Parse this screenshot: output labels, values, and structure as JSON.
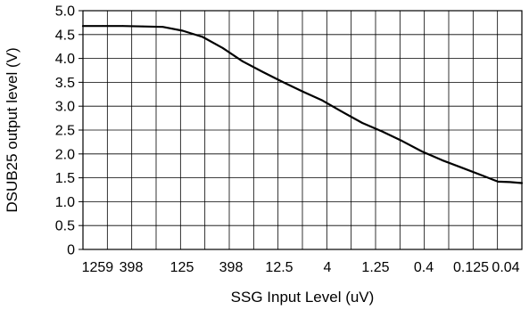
{
  "chart_data": {
    "type": "line",
    "title": "",
    "xlabel": "SSG Input Level (uV)",
    "ylabel": "DSUB25 output level (V)",
    "x_tick_labels": [
      "1259",
      "398",
      "125",
      "398",
      "12.5",
      "4",
      "1.25",
      "0.4",
      "0.125",
      "0.04"
    ],
    "y_tick_labels": [
      "0",
      "0.5",
      "1.0",
      "1.5",
      "2.0",
      "2.5",
      "3.0",
      "3.5",
      "4.0",
      "4.5",
      "5.0"
    ],
    "ylim": [
      0,
      5.0
    ],
    "grid": true,
    "x_scale": "category, decreasing input level left to right",
    "series": [
      {
        "color": "#000000",
        "points": [
          {
            "x_index": 0.0,
            "y": 4.68
          },
          {
            "x_index": 0.5,
            "y": 4.68
          },
          {
            "x_index": 1.0,
            "y": 4.68
          },
          {
            "x_index": 1.5,
            "y": 4.67
          },
          {
            "x_index": 2.0,
            "y": 4.66
          },
          {
            "x_index": 2.5,
            "y": 4.58
          },
          {
            "x_index": 3.0,
            "y": 4.45
          },
          {
            "x_index": 3.5,
            "y": 4.22
          },
          {
            "x_index": 4.0,
            "y": 3.94
          },
          {
            "x_index": 4.5,
            "y": 3.72
          },
          {
            "x_index": 5.0,
            "y": 3.51
          },
          {
            "x_index": 5.5,
            "y": 3.31
          },
          {
            "x_index": 6.0,
            "y": 3.12
          },
          {
            "x_index": 6.5,
            "y": 2.88
          },
          {
            "x_index": 7.0,
            "y": 2.65
          },
          {
            "x_index": 7.5,
            "y": 2.47
          },
          {
            "x_index": 8.0,
            "y": 2.27
          },
          {
            "x_index": 8.5,
            "y": 2.05
          },
          {
            "x_index": 9.0,
            "y": 1.87
          },
          {
            "x_index": 9.5,
            "y": 1.71
          },
          {
            "x_index": 10.0,
            "y": 1.55
          },
          {
            "x_index": 10.4,
            "y": 1.42
          },
          {
            "x_index": 10.7,
            "y": 1.41
          },
          {
            "x_index": 11.0,
            "y": 1.39
          }
        ]
      }
    ]
  }
}
